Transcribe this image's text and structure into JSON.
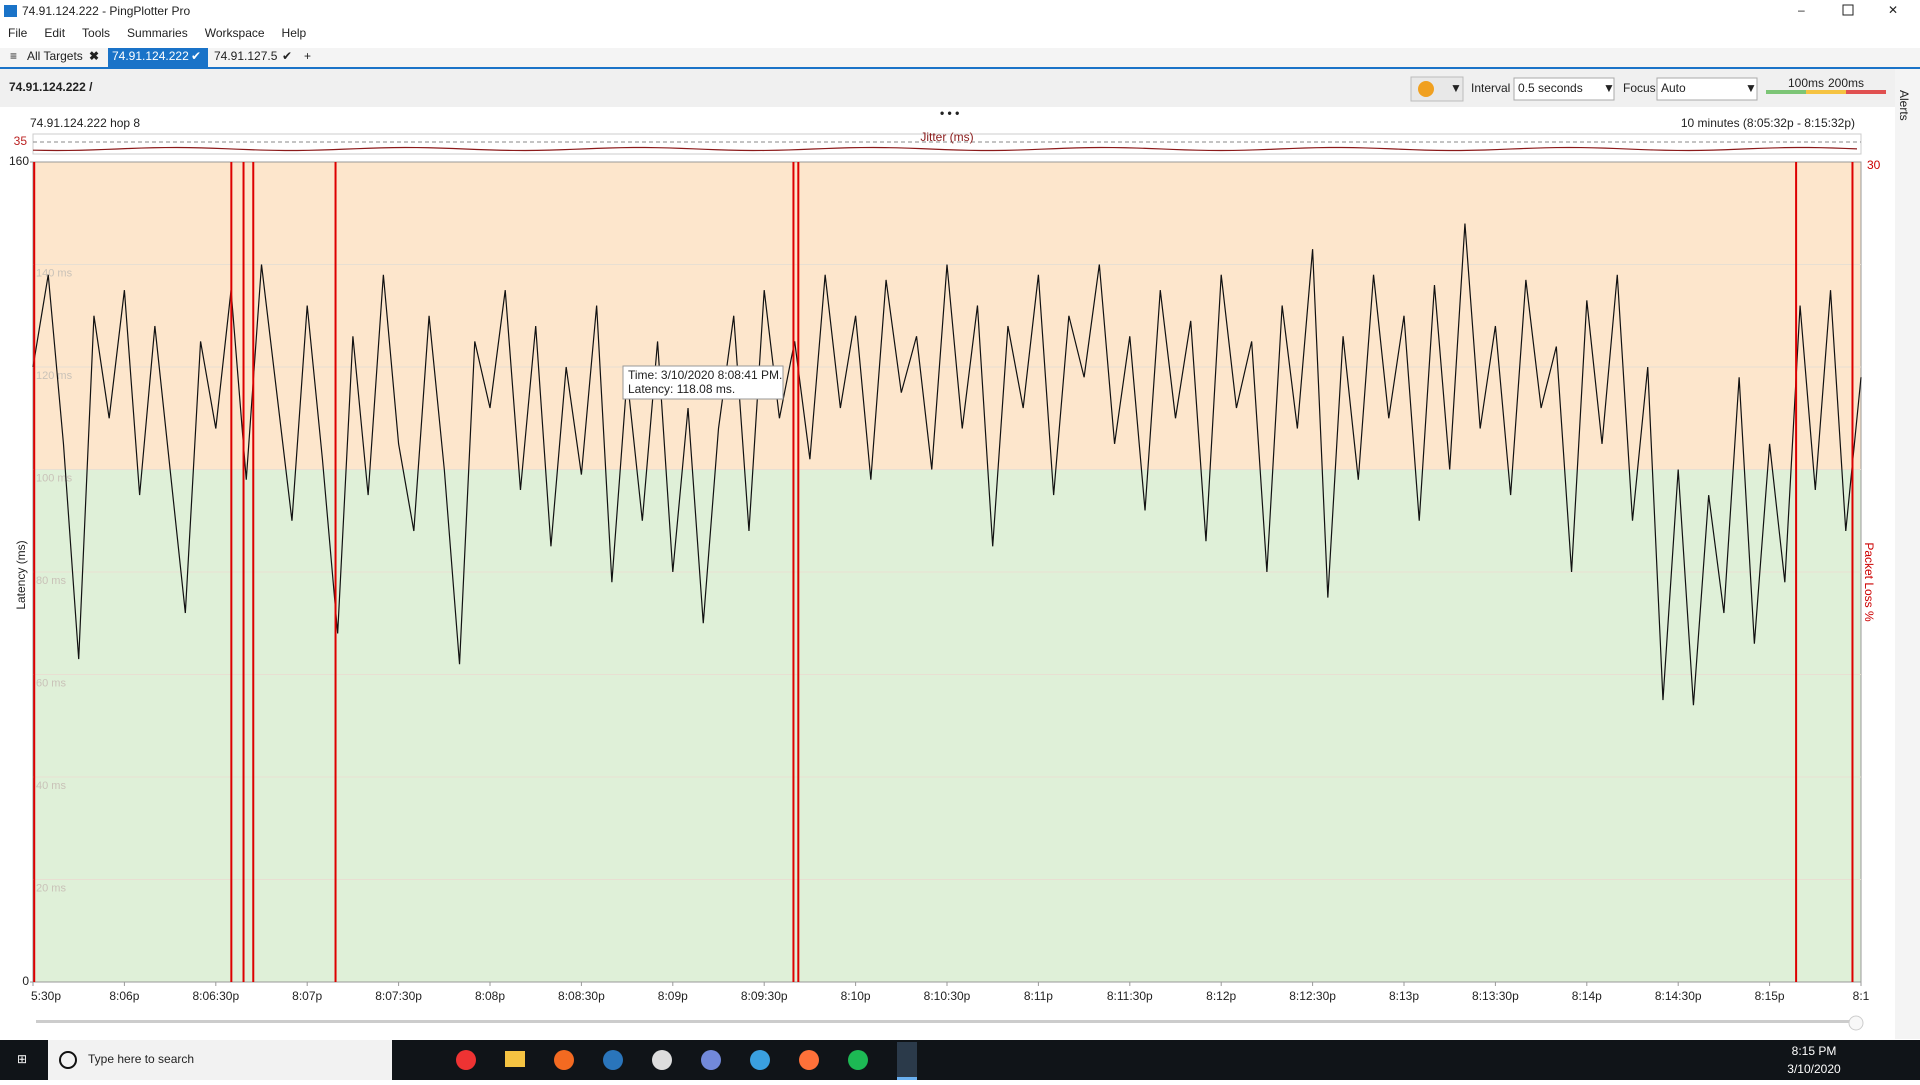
{
  "window": {
    "title": "74.91.124.222 - PingPlotter Pro"
  },
  "menu": [
    "File",
    "Edit",
    "Tools",
    "Summaries",
    "Workspace",
    "Help"
  ],
  "tabs": [
    "All Targets",
    "74.91.124.222",
    "74.91.127.5"
  ],
  "breadcrumb": "74.91.124.222 /",
  "toolbar": {
    "interval_label": "Interval",
    "interval": "0.5 seconds",
    "focus_label": "Focus",
    "focus": "Auto",
    "thresholds": [
      {
        "value": 100,
        "label": "100ms"
      },
      {
        "value": 200,
        "label": "200ms"
      }
    ],
    "alerts": "Alerts"
  },
  "graph": {
    "type": "line",
    "hop_label": "74.91.124.222 hop 8",
    "range_label": "10 minutes (8:05:32p - 8:15:32p)",
    "jitter_label": "Jitter (ms)",
    "jitter_ticks": [
      35
    ],
    "ylabel": "Latency (ms)",
    "y2label": "Packet Loss %",
    "ylim": [
      0,
      160
    ],
    "yticks": [
      0,
      {
        "value": 20,
        "label": "20 ms"
      },
      {
        "value": 40,
        "label": "40 ms"
      },
      {
        "value": 60,
        "label": "60 ms"
      },
      {
        "value": 80,
        "label": "80 ms"
      },
      {
        "value": 100,
        "label": "100 ms"
      },
      {
        "value": 120,
        "label": "120 ms"
      },
      {
        "value": 140,
        "label": "140 ms"
      },
      160
    ],
    "y2lim": [
      0,
      30
    ],
    "y2ticks": [
      30
    ],
    "xlim": [
      0,
      600
    ],
    "xticks": [
      {
        "value": 0,
        "label": "5:30p"
      },
      {
        "value": 30,
        "label": "8:06p"
      },
      {
        "value": 60,
        "label": "8:06:30p"
      },
      {
        "value": 90,
        "label": "8:07p"
      },
      {
        "value": 120,
        "label": "8:07:30p"
      },
      {
        "value": 150,
        "label": "8:08p"
      },
      {
        "value": 180,
        "label": "8:08:30p"
      },
      {
        "value": 210,
        "label": "8:09p"
      },
      {
        "value": 240,
        "label": "8:09:30p"
      },
      {
        "value": 270,
        "label": "8:10p"
      },
      {
        "value": 300,
        "label": "8:10:30p"
      },
      {
        "value": 330,
        "label": "8:11p"
      },
      {
        "value": 360,
        "label": "8:11:30p"
      },
      {
        "value": 390,
        "label": "8:12p"
      },
      {
        "value": 420,
        "label": "8:12:30p"
      },
      {
        "value": 450,
        "label": "8:13p"
      },
      {
        "value": 480,
        "label": "8:13:30p"
      },
      {
        "value": 510,
        "label": "8:14p"
      },
      {
        "value": 540,
        "label": "8:14:30p"
      },
      {
        "value": 570,
        "label": "8:15p"
      },
      {
        "value": 600,
        "label": "8:1"
      }
    ],
    "x": [
      0,
      5,
      10,
      15,
      20,
      25,
      30,
      35,
      40,
      45,
      50,
      55,
      60,
      65,
      70,
      75,
      80,
      85,
      90,
      95,
      100,
      105,
      110,
      115,
      120,
      125,
      130,
      135,
      140,
      145,
      150,
      155,
      160,
      165,
      170,
      175,
      180,
      185,
      190,
      195,
      200,
      205,
      210,
      215,
      220,
      225,
      230,
      235,
      240,
      245,
      250,
      255,
      260,
      265,
      270,
      275,
      280,
      285,
      290,
      295,
      300,
      305,
      310,
      315,
      320,
      325,
      330,
      335,
      340,
      345,
      350,
      355,
      360,
      365,
      370,
      375,
      380,
      385,
      390,
      395,
      400,
      405,
      410,
      415,
      420,
      425,
      430,
      435,
      440,
      445,
      450,
      455,
      460,
      465,
      470,
      475,
      480,
      485,
      490,
      495,
      500,
      505,
      510,
      515,
      520,
      525,
      530,
      535,
      540,
      545,
      550,
      555,
      560,
      565,
      570,
      575,
      580,
      585,
      590,
      595,
      600
    ],
    "values": [
      120,
      138,
      105,
      63,
      130,
      110,
      135,
      95,
      128,
      100,
      72,
      125,
      108,
      135,
      98,
      140,
      115,
      90,
      132,
      102,
      68,
      126,
      95,
      138,
      105,
      88,
      130,
      100,
      62,
      125,
      112,
      135,
      96,
      128,
      85,
      120,
      99,
      132,
      78,
      118,
      90,
      125,
      80,
      112,
      70,
      108,
      130,
      88,
      135,
      110,
      125,
      102,
      138,
      112,
      130,
      98,
      137,
      115,
      126,
      100,
      140,
      108,
      132,
      85,
      128,
      112,
      138,
      95,
      130,
      118,
      140,
      105,
      126,
      92,
      135,
      110,
      129,
      86,
      138,
      112,
      125,
      80,
      132,
      108,
      143,
      75,
      126,
      98,
      138,
      110,
      130,
      90,
      136,
      100,
      148,
      108,
      128,
      95,
      137,
      112,
      124,
      80,
      133,
      105,
      138,
      90,
      120,
      55,
      100,
      54,
      95,
      72,
      118,
      66,
      105,
      78,
      132,
      96,
      135,
      88,
      118
    ],
    "loss_x": [
      0.4,
      65.1,
      69.1,
      72.3,
      99.3,
      249.6,
      251.2,
      578.7,
      597.2
    ],
    "tooltip": [
      "Time: 3/10/2020 8:08:41 PM.",
      "Latency: 118.08 ms."
    ]
  },
  "taskbar": {
    "search": "Type here to search",
    "time": "8:15 PM",
    "date": "3/10/2020"
  }
}
